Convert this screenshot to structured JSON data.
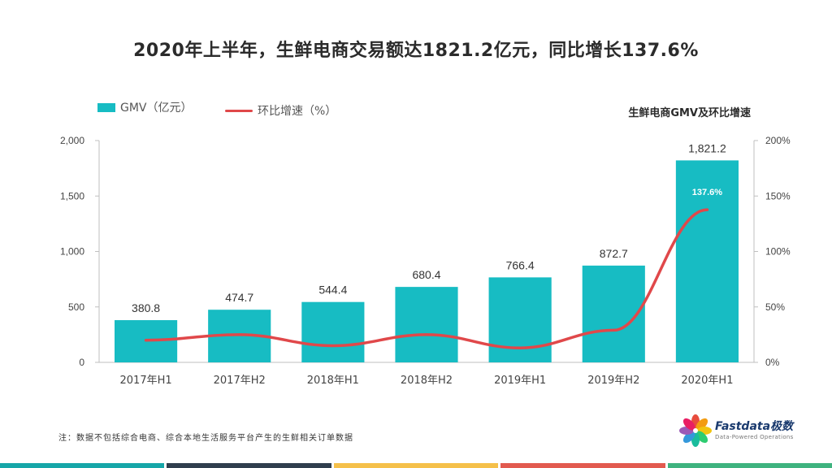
{
  "header": {
    "title": "2020年上半年，生鲜电商交易额达1821.2亿元，同比增长137.6%",
    "subtitle": "生鲜电商GMV及环比增速"
  },
  "legend": {
    "bar_label": "GMV（亿元）",
    "line_label": "环比增速（%）"
  },
  "footnote": "注：数据不包括综合电商、综合本地生活服务平台产生的生鲜相关订单数据",
  "logo": {
    "name": "Fastdata极数",
    "tagline": "Data-Powered Operations"
  },
  "colors": {
    "bar": "#17bcc3",
    "line": "#e0484a",
    "axis": "#bfbfbf",
    "text": "#444444",
    "stripes": [
      "#16a6a8",
      "#2f3e4d",
      "#f5c04a",
      "#e25a4f",
      "#3fb37f"
    ]
  },
  "chart_data": {
    "type": "bar",
    "categories": [
      "2017年H1",
      "2017年H2",
      "2018年H1",
      "2018年H2",
      "2019年H1",
      "2019年H2",
      "2020年H1"
    ],
    "series": [
      {
        "name": "GMV（亿元）",
        "type": "bar",
        "axis": "left",
        "values": [
          380.8,
          474.7,
          544.4,
          680.4,
          766.4,
          872.7,
          1821.2
        ],
        "labels": [
          "380.8",
          "474.7",
          "544.4",
          "680.4",
          "766.4",
          "872.7",
          "1,821.2"
        ]
      },
      {
        "name": "环比增速（%）",
        "type": "line",
        "axis": "right",
        "values": [
          20,
          25,
          15,
          25,
          13,
          29,
          137.6
        ],
        "labels": [
          "",
          "",
          "",
          "",
          "",
          "",
          "137.6%"
        ]
      }
    ],
    "y_left": {
      "min": 0,
      "max": 2000,
      "ticks": [
        "0",
        "500",
        "1,000",
        "1,500",
        "2,000"
      ],
      "tick_values": [
        0,
        500,
        1000,
        1500,
        2000
      ]
    },
    "y_right": {
      "min": 0,
      "max": 200,
      "ticks": [
        "0%",
        "50%",
        "100%",
        "150%",
        "200%"
      ],
      "tick_values": [
        0,
        50,
        100,
        150,
        200
      ]
    },
    "legend_position": "top-left",
    "grid": false
  }
}
